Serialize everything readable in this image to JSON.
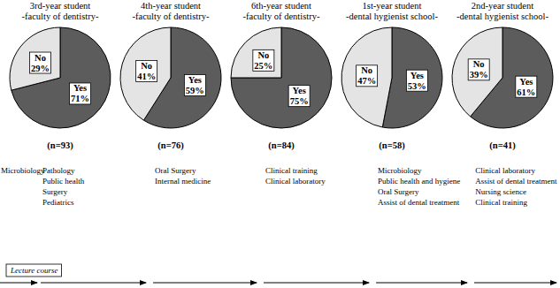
{
  "chart_data": [
    {
      "type": "pie",
      "title": "3rd-year student",
      "subtitle": "-faculty of dentistry-",
      "categories": [
        "Yes",
        "No"
      ],
      "values": [
        71,
        29
      ],
      "value_labels": [
        "71%",
        "29%"
      ],
      "colors": [
        "#5c5c5c",
        "#e4e4e4"
      ],
      "data_labels": true,
      "n_label": "(n=93)",
      "courses": [
        "Pathology",
        "Public health",
        "Surgery",
        "Pediatrics"
      ]
    },
    {
      "type": "pie",
      "title": "4th-year student",
      "subtitle": "-faculty of dentistry-",
      "categories": [
        "Yes",
        "No"
      ],
      "values": [
        59,
        41
      ],
      "value_labels": [
        "59%",
        "41%"
      ],
      "colors": [
        "#5c5c5c",
        "#e4e4e4"
      ],
      "data_labels": true,
      "n_label": "(n=76)",
      "courses": [
        "Oral Surgery",
        "Internal medicine"
      ]
    },
    {
      "type": "pie",
      "title": "6th-year student",
      "subtitle": "-faculty of dentistry-",
      "categories": [
        "Yes",
        "No"
      ],
      "values": [
        75,
        25
      ],
      "value_labels": [
        "75%",
        "25%"
      ],
      "colors": [
        "#5c5c5c",
        "#e4e4e4"
      ],
      "data_labels": true,
      "n_label": "(n=84)",
      "courses": [
        "Clinical training",
        "Clinical laboratory"
      ]
    },
    {
      "type": "pie",
      "title": "1st-year student",
      "subtitle": "-dental hygienist school-",
      "categories": [
        "Yes",
        "No"
      ],
      "values": [
        53,
        47
      ],
      "value_labels": [
        "53%",
        "47%"
      ],
      "colors": [
        "#5c5c5c",
        "#e4e4e4"
      ],
      "data_labels": true,
      "n_label": "(n=58)",
      "courses": [
        "Microbiology",
        "Public health and hygiene",
        "Oral Surgery",
        "Assist of dental treatment"
      ]
    },
    {
      "type": "pie",
      "title": "2nd-year student",
      "subtitle": "-dental hygienist school-",
      "categories": [
        "Yes",
        "No"
      ],
      "values": [
        61,
        39
      ],
      "value_labels": [
        "61%",
        "39%"
      ],
      "colors": [
        "#5c5c5c",
        "#e4e4e4"
      ],
      "data_labels": true,
      "n_label": "(n=41)",
      "courses": [
        "Clinical laboratory",
        "Assist of dental treatment",
        "Nursing science",
        "Clinical training"
      ]
    }
  ],
  "timeline": {
    "label": "Lecture course",
    "start_courses": [
      "Microbiology"
    ]
  }
}
